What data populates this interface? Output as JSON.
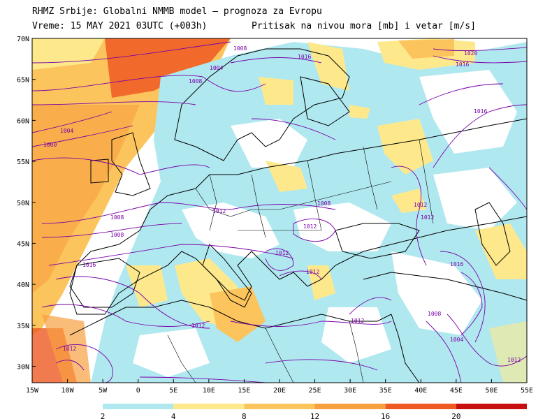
{
  "header": {
    "line1": "RHMZ Srbije: Globalni NMMB model – prognoza za Evropu",
    "line2": "Vreme: 15 MAY 2021 03UTC (+003h)",
    "line3": "Pritisak na nivou mora [mb] i vetar [m/s]"
  },
  "axes": {
    "lat": [
      "70N",
      "65N",
      "60N",
      "55N",
      "50N",
      "45N",
      "40N",
      "35N",
      "30N"
    ],
    "lon": [
      "15W",
      "10W",
      "5W",
      "0",
      "5E",
      "10E",
      "15E",
      "20E",
      "25E",
      "30E",
      "35E",
      "40E",
      "45E",
      "50E",
      "55E"
    ]
  },
  "legend": {
    "ticks": [
      "2",
      "4",
      "8",
      "12",
      "16",
      "20"
    ],
    "colors": [
      "#b0e8f0",
      "#fde98c",
      "#fcc45c",
      "#f8a040",
      "#ee5a22",
      "#c81010"
    ]
  },
  "isobars": [
    "1020",
    "1016",
    "1016",
    "1008",
    "1004",
    "1008",
    "1004",
    "1000",
    "1016",
    "1012",
    "1008",
    "1012",
    "1012",
    "1012",
    "1012",
    "1012",
    "1008",
    "1016",
    "1008",
    "1012",
    "1004",
    "1012",
    "1016",
    "1012",
    "1012",
    "1008"
  ]
}
